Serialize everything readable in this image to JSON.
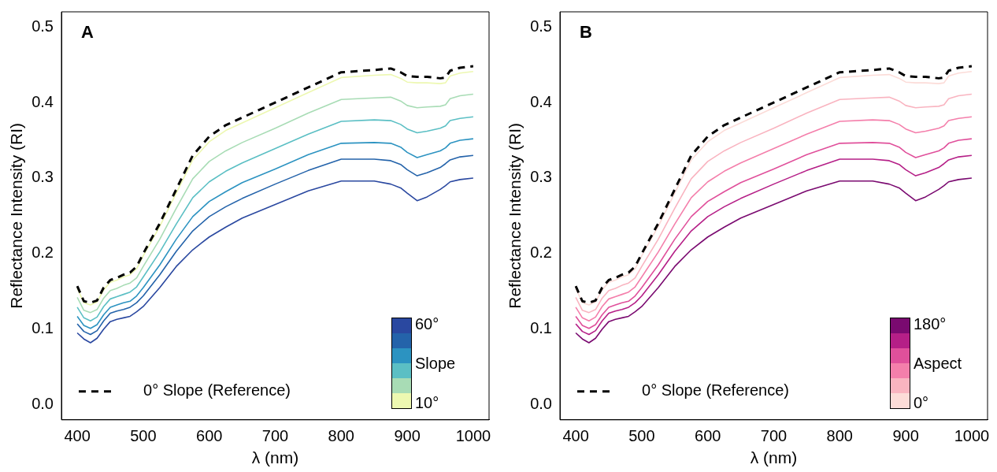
{
  "chart_data": [
    {
      "type": "line",
      "title": "A",
      "xlabel": "λ (nm)",
      "ylabel": "Reflectance Intensity (RI)",
      "clabel": "Slope",
      "annotations": [
        "60°",
        "10°"
      ],
      "x": [
        400,
        410,
        420,
        430,
        440,
        450,
        460,
        470,
        480,
        490,
        500,
        525,
        550,
        575,
        600,
        625,
        650,
        700,
        750,
        800,
        850,
        875,
        890,
        900,
        915,
        930,
        950,
        958,
        965,
        980,
        1000
      ],
      "xlim": [
        376,
        1024
      ],
      "xticks": [
        400,
        500,
        600,
        700,
        800,
        900,
        1000
      ],
      "ylim": [
        -0.02,
        0.52
      ],
      "yticks": [
        {
          "value": 0,
          "label": "0.0"
        },
        0.1,
        0.2,
        0.3,
        0.4,
        0.5
      ],
      "grid": false,
      "legend": "bottom left",
      "marker": "none",
      "series": [
        {
          "color": "#edf8b1",
          "values": [
            0.154,
            0.135,
            0.132,
            0.136,
            0.152,
            0.162,
            0.165,
            0.169,
            0.172,
            0.18,
            0.197,
            0.236,
            0.28,
            0.324,
            0.348,
            0.363,
            0.373,
            0.393,
            0.413,
            0.433,
            0.436,
            0.437,
            0.432,
            0.427,
            0.426,
            0.426,
            0.425,
            0.426,
            0.435,
            0.439,
            0.441
          ]
        },
        {
          "color": "#a8dcb5",
          "values": [
            0.142,
            0.125,
            0.122,
            0.126,
            0.141,
            0.151,
            0.154,
            0.158,
            0.161,
            0.168,
            0.183,
            0.219,
            0.26,
            0.299,
            0.322,
            0.336,
            0.347,
            0.366,
            0.386,
            0.404,
            0.406,
            0.407,
            0.402,
            0.396,
            0.393,
            0.394,
            0.395,
            0.397,
            0.405,
            0.409,
            0.411
          ]
        },
        {
          "color": "#5bbfc4",
          "values": [
            0.129,
            0.115,
            0.111,
            0.116,
            0.13,
            0.14,
            0.143,
            0.146,
            0.149,
            0.156,
            0.169,
            0.202,
            0.239,
            0.274,
            0.295,
            0.309,
            0.32,
            0.339,
            0.358,
            0.375,
            0.377,
            0.376,
            0.371,
            0.365,
            0.36,
            0.362,
            0.366,
            0.369,
            0.376,
            0.379,
            0.381
          ]
        },
        {
          "color": "#2c93c1",
          "values": [
            0.117,
            0.105,
            0.101,
            0.106,
            0.119,
            0.129,
            0.132,
            0.135,
            0.137,
            0.144,
            0.155,
            0.185,
            0.219,
            0.249,
            0.269,
            0.282,
            0.294,
            0.312,
            0.331,
            0.346,
            0.347,
            0.346,
            0.341,
            0.334,
            0.327,
            0.331,
            0.336,
            0.34,
            0.346,
            0.35,
            0.352
          ]
        },
        {
          "color": "#2463aa",
          "values": [
            0.107,
            0.097,
            0.093,
            0.098,
            0.111,
            0.121,
            0.124,
            0.126,
            0.129,
            0.135,
            0.144,
            0.172,
            0.203,
            0.23,
            0.249,
            0.262,
            0.273,
            0.292,
            0.31,
            0.325,
            0.325,
            0.323,
            0.318,
            0.311,
            0.303,
            0.307,
            0.314,
            0.319,
            0.324,
            0.328,
            0.33
          ]
        },
        {
          "color": "#2a48a0",
          "values": [
            0.095,
            0.087,
            0.082,
            0.088,
            0.1,
            0.11,
            0.113,
            0.115,
            0.117,
            0.123,
            0.13,
            0.155,
            0.183,
            0.205,
            0.222,
            0.235,
            0.247,
            0.265,
            0.283,
            0.296,
            0.296,
            0.292,
            0.287,
            0.28,
            0.27,
            0.275,
            0.285,
            0.29,
            0.295,
            0.298,
            0.3
          ]
        },
        {
          "name": "0° Slope (Reference)",
          "color": "#000000",
          "line_style": "dashed",
          "values": [
            0.157,
            0.137,
            0.135,
            0.138,
            0.155,
            0.165,
            0.168,
            0.172,
            0.175,
            0.183,
            0.2,
            0.24,
            0.285,
            0.33,
            0.355,
            0.37,
            0.38,
            0.4,
            0.42,
            0.44,
            0.443,
            0.445,
            0.44,
            0.435,
            0.434,
            0.434,
            0.432,
            0.433,
            0.442,
            0.446,
            0.448
          ]
        }
      ]
    },
    {
      "type": "line",
      "title": "B",
      "xlabel": "λ (nm)",
      "ylabel": "Reflectance Intensity (RI)",
      "clabel": "Aspect",
      "annotations": [
        "180°",
        "0°"
      ],
      "x": [
        400,
        410,
        420,
        430,
        440,
        450,
        460,
        470,
        480,
        490,
        500,
        525,
        550,
        575,
        600,
        625,
        650,
        700,
        750,
        800,
        850,
        875,
        890,
        900,
        915,
        930,
        950,
        958,
        965,
        980,
        1000
      ],
      "xlim": [
        376,
        1024
      ],
      "xticks": [
        400,
        500,
        600,
        700,
        800,
        900,
        1000
      ],
      "ylim": [
        -0.02,
        0.52
      ],
      "yticks": [
        {
          "value": 0,
          "label": "0.0"
        },
        0.1,
        0.2,
        0.3,
        0.4,
        0.5
      ],
      "grid": false,
      "legend": "bottom left",
      "marker": "none",
      "series": [
        {
          "color": "#fcdcd8",
          "values": [
            0.154,
            0.135,
            0.132,
            0.136,
            0.152,
            0.162,
            0.165,
            0.169,
            0.172,
            0.18,
            0.197,
            0.236,
            0.28,
            0.324,
            0.348,
            0.363,
            0.373,
            0.393,
            0.413,
            0.433,
            0.436,
            0.437,
            0.432,
            0.427,
            0.426,
            0.426,
            0.425,
            0.426,
            0.435,
            0.439,
            0.441
          ]
        },
        {
          "color": "#f9b4c0",
          "values": [
            0.142,
            0.125,
            0.122,
            0.126,
            0.141,
            0.151,
            0.154,
            0.158,
            0.161,
            0.168,
            0.183,
            0.219,
            0.26,
            0.299,
            0.322,
            0.336,
            0.347,
            0.366,
            0.386,
            0.404,
            0.406,
            0.407,
            0.402,
            0.396,
            0.393,
            0.394,
            0.395,
            0.397,
            0.405,
            0.409,
            0.411
          ]
        },
        {
          "color": "#f47fab",
          "values": [
            0.129,
            0.115,
            0.111,
            0.116,
            0.13,
            0.14,
            0.143,
            0.146,
            0.149,
            0.156,
            0.169,
            0.202,
            0.239,
            0.274,
            0.295,
            0.309,
            0.32,
            0.339,
            0.358,
            0.375,
            0.377,
            0.376,
            0.371,
            0.365,
            0.36,
            0.362,
            0.366,
            0.369,
            0.376,
            0.379,
            0.381
          ]
        },
        {
          "color": "#e0509b",
          "values": [
            0.117,
            0.105,
            0.101,
            0.106,
            0.119,
            0.129,
            0.132,
            0.135,
            0.137,
            0.144,
            0.155,
            0.185,
            0.219,
            0.249,
            0.269,
            0.282,
            0.294,
            0.312,
            0.331,
            0.346,
            0.347,
            0.346,
            0.341,
            0.334,
            0.327,
            0.331,
            0.336,
            0.34,
            0.346,
            0.35,
            0.352
          ]
        },
        {
          "color": "#b51f87",
          "values": [
            0.107,
            0.097,
            0.093,
            0.098,
            0.111,
            0.121,
            0.124,
            0.126,
            0.129,
            0.135,
            0.144,
            0.172,
            0.203,
            0.23,
            0.249,
            0.262,
            0.273,
            0.292,
            0.31,
            0.325,
            0.325,
            0.323,
            0.318,
            0.311,
            0.303,
            0.307,
            0.314,
            0.319,
            0.324,
            0.328,
            0.33
          ]
        },
        {
          "color": "#7a0a70",
          "values": [
            0.095,
            0.087,
            0.082,
            0.088,
            0.1,
            0.11,
            0.113,
            0.115,
            0.117,
            0.123,
            0.13,
            0.155,
            0.183,
            0.205,
            0.222,
            0.235,
            0.247,
            0.265,
            0.283,
            0.296,
            0.296,
            0.292,
            0.287,
            0.28,
            0.27,
            0.275,
            0.285,
            0.29,
            0.295,
            0.298,
            0.3
          ]
        },
        {
          "name": "0° Slope (Reference)",
          "color": "#000000",
          "line_style": "dashed",
          "values": [
            0.157,
            0.137,
            0.135,
            0.138,
            0.155,
            0.165,
            0.168,
            0.172,
            0.175,
            0.183,
            0.2,
            0.24,
            0.285,
            0.33,
            0.355,
            0.37,
            0.38,
            0.4,
            0.42,
            0.44,
            0.443,
            0.445,
            0.44,
            0.435,
            0.434,
            0.434,
            0.432,
            0.433,
            0.442,
            0.446,
            0.448
          ]
        }
      ]
    }
  ]
}
